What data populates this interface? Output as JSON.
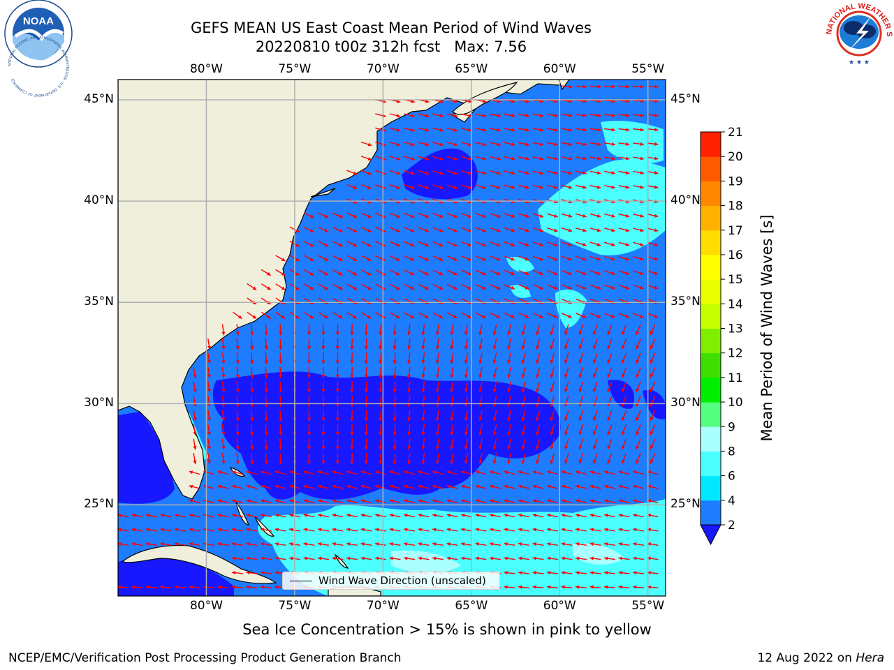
{
  "title": {
    "line1": "GEFS MEAN US East Coast Mean Period of Wind Waves",
    "line2": "20220810 t00z 312h fcst   Max: 7.56"
  },
  "map": {
    "projection": "plate-carree",
    "lon_range": [
      -85,
      -54
    ],
    "lat_range": [
      20.5,
      46
    ],
    "lon_ticks": [
      -80,
      -75,
      -70,
      -65,
      -60,
      -55
    ],
    "lat_ticks": [
      25,
      30,
      35,
      40,
      45
    ],
    "lon_tick_labels": [
      "80°W",
      "75°W",
      "70°W",
      "65°W",
      "60°W",
      "55°W"
    ],
    "lat_tick_labels": [
      "25°N",
      "30°N",
      "35°N",
      "40°N",
      "45°N"
    ],
    "gridlines": true,
    "colors": {
      "land": "#efefdc",
      "coast": "#000000",
      "grid": "#b0b0b0",
      "arrow": "#ff0000"
    }
  },
  "colorbar": {
    "label": "Mean Period of Wind Waves [s]",
    "ticks": [
      "2",
      "4",
      "6",
      "8",
      "9",
      "10",
      "11",
      "12",
      "13",
      "14",
      "15",
      "16",
      "17",
      "18",
      "19",
      "20",
      "21"
    ],
    "levels": [
      2,
      4,
      6,
      8,
      9,
      10,
      11,
      12,
      13,
      14,
      15,
      16,
      17,
      18,
      19,
      20,
      21
    ],
    "colors": [
      "#1e7cff",
      "#00e8ff",
      "#4bffff",
      "#aaffff",
      "#55ff7f",
      "#00ee00",
      "#40dd00",
      "#7fee00",
      "#c6ff00",
      "#e8ff00",
      "#ffff00",
      "#ffdd00",
      "#ffb000",
      "#ff8800",
      "#ff5a00",
      "#ff2200"
    ],
    "extend_low_color": "#1818ff"
  },
  "legend": {
    "label": "Wind Wave Direction (unscaled)"
  },
  "subtitle": "Sea Ice Concentration > 15% is shown in pink to yellow",
  "footer": {
    "credit": "NCEP/EMC/Verification Post Processing Product Generation Branch",
    "date": "12 Aug 2022 on",
    "machine": "Hera"
  },
  "logos": {
    "left": {
      "text": "NOAA",
      "ring_text": "NATIONAL OCEANIC AND ATMOSPHERIC ADMINISTRATION · U.S. DEPARTMENT OF COMMERCE"
    },
    "right": {
      "ring_text": "NATIONAL WEATHER SERVICE"
    }
  }
}
